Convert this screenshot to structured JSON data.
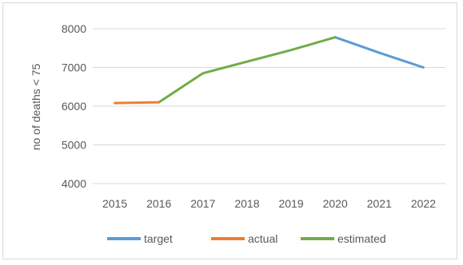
{
  "chart_data": {
    "type": "line",
    "title": "",
    "xlabel": "",
    "ylabel": "no of deaths < 75",
    "x": [
      2015,
      2016,
      2017,
      2018,
      2019,
      2020,
      2021,
      2022
    ],
    "ylim": [
      4000,
      8000
    ],
    "yticks": [
      4000,
      5000,
      6000,
      7000,
      8000
    ],
    "grid": true,
    "legend_position": "bottom",
    "series": [
      {
        "name": "target",
        "color": "#5b9bd5",
        "values": [
          null,
          null,
          null,
          null,
          null,
          7780,
          7380,
          7000
        ]
      },
      {
        "name": "actual",
        "color": "#ed7d31",
        "values": [
          6080,
          6100,
          null,
          null,
          null,
          null,
          null,
          null
        ]
      },
      {
        "name": "estimated",
        "color": "#70ad47",
        "values": [
          null,
          6100,
          6850,
          7150,
          7450,
          7780,
          null,
          null
        ]
      }
    ]
  }
}
